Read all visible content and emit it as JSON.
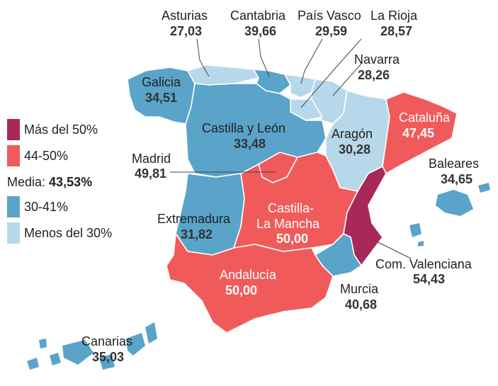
{
  "colors": {
    "mas_50": "#a8285a",
    "r44_50": "#f15a5a",
    "r30_41": "#5aa3c9",
    "menos_30": "#b7d8ea"
  },
  "legend": {
    "items": [
      {
        "label": "Más del 50%",
        "color": "#a8285a"
      },
      {
        "label": "44-50%",
        "color": "#f15a5a"
      },
      {
        "label": "30-41%",
        "color": "#5aa3c9"
      },
      {
        "label": "Menos del 30%",
        "color": "#b7d8ea"
      }
    ],
    "media_label": "Media:",
    "media_value": "43,53%"
  },
  "regions": {
    "asturias": {
      "name": "Asturias",
      "value": "27,03"
    },
    "cantabria": {
      "name": "Cantabria",
      "value": "39,66"
    },
    "pais_vasco": {
      "name": "País Vasco",
      "value": "29,59"
    },
    "la_rioja": {
      "name": "La Rioja",
      "value": "28,57"
    },
    "navarra": {
      "name": "Navarra",
      "value": "28,26"
    },
    "galicia": {
      "name": "Galicia",
      "value": "34,51"
    },
    "castilla_leon": {
      "name": "Castilla y León",
      "value": "33,48"
    },
    "aragon": {
      "name": "Aragón",
      "value": "30,28"
    },
    "cataluna": {
      "name": "Cataluña",
      "value": "47,45"
    },
    "madrid": {
      "name": "Madrid",
      "value": "49,81"
    },
    "baleares": {
      "name": "Baleares",
      "value": "34,65"
    },
    "extremadura": {
      "name": "Extremadura",
      "value": "31,82"
    },
    "castilla_la_mancha": {
      "name_line1": "Castilla-",
      "name_line2": "La Mancha",
      "value": "50,00"
    },
    "com_valenciana": {
      "name": "Com. Valenciana",
      "value": "54,43"
    },
    "andalucia": {
      "name": "Andalucía",
      "value": "50,00"
    },
    "murcia": {
      "name": "Murcia",
      "value": "40,68"
    },
    "canarias": {
      "name": "Canarias",
      "value": "35,03"
    }
  }
}
